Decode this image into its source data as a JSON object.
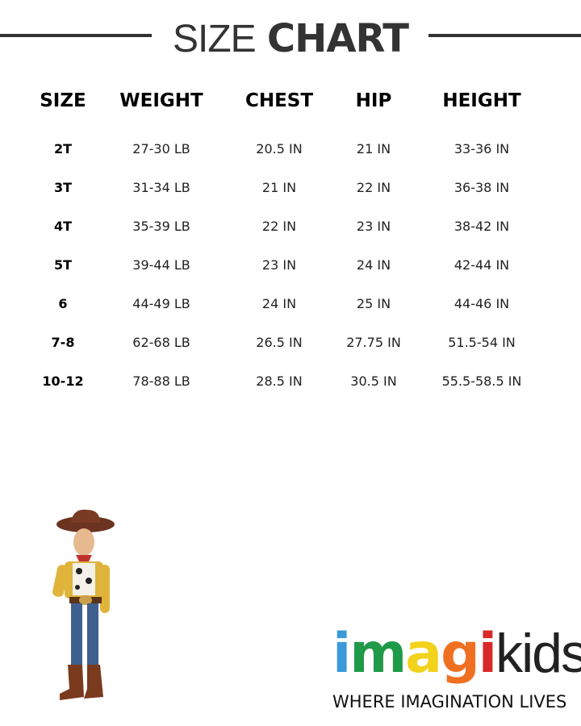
{
  "title": {
    "light": "SIZE",
    "bold": "CHART"
  },
  "columns": [
    "SIZE",
    "WEIGHT",
    "CHEST",
    "HIP",
    "HEIGHT"
  ],
  "rows": [
    [
      "2T",
      "27-30 LB",
      "20.5 IN",
      "21 IN",
      "33-36 IN"
    ],
    [
      "3T",
      "31-34 LB",
      "21 IN",
      "22 IN",
      "36-38 IN"
    ],
    [
      "4T",
      "35-39 LB",
      "22 IN",
      "23 IN",
      "38-42 IN"
    ],
    [
      "5T",
      "39-44 LB",
      "23 IN",
      "24 IN",
      "42-44 IN"
    ],
    [
      "6",
      "44-49 LB",
      "24 IN",
      "25 IN",
      "44-46 IN"
    ],
    [
      "7-8",
      "62-68 LB",
      "26.5 IN",
      "27.75 IN",
      "51.5-54 IN"
    ],
    [
      "10-12",
      "78-88 LB",
      "28.5 IN",
      "30.5 IN",
      "55.5-58.5 IN"
    ]
  ],
  "brand": {
    "letters": [
      {
        "ch": "i",
        "color": "#3b9ad9"
      },
      {
        "ch": "m",
        "color": "#1f9a48"
      },
      {
        "ch": "a",
        "color": "#f2d21b"
      },
      {
        "ch": "g",
        "color": "#f07022"
      },
      {
        "ch": "i",
        "color": "#d8282a"
      }
    ],
    "suffix": "kids",
    "tagline": "WHERE IMAGINATION LIVES"
  }
}
